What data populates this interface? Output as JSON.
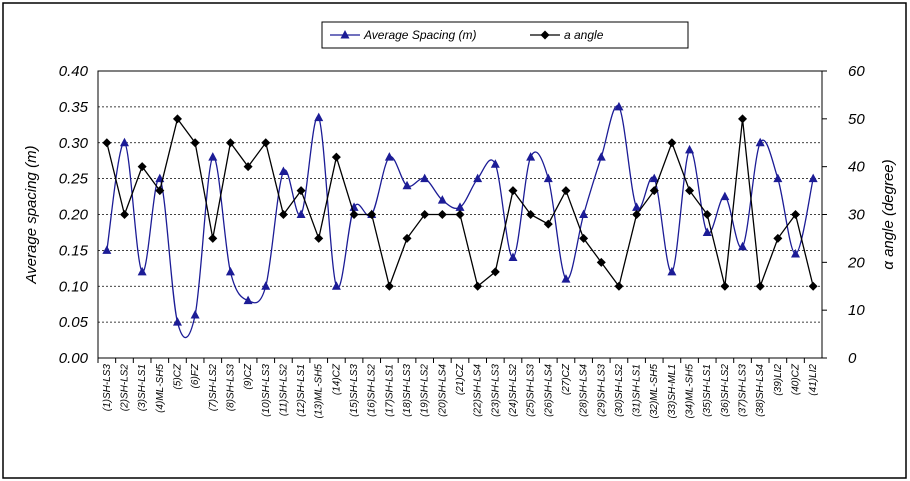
{
  "chart_data": {
    "type": "line",
    "categories": [
      "(1)SH-LS3",
      "(2)SH-LS2",
      "(3)SH-LS1",
      "(4)ML-SH5",
      "(5)CZ",
      "(6)FZ",
      "(7)SH-LS2",
      "(8)SH-LS3",
      "(9)CZ",
      "(10)SH-LS3",
      "(11)SH-LS2",
      "(12)SH-LS1",
      "(13)ML-SH5",
      "(14)CZ",
      "(15)SH-LS3",
      "(16)SH-LS2",
      "(17)SH-LS1",
      "(18)SH-LS3",
      "(19)SH-LS2",
      "(20)SH-LS4",
      "(21)CZ",
      "(22)SH-LS4",
      "(23)SH-LS3",
      "(24)SH-LS2",
      "(25)SH-LS3",
      "(26)SH-LS4",
      "(27)CZ",
      "(28)SH-LS4",
      "(29)SH-LS3",
      "(30)SH-LS2",
      "(31)SH-LS1",
      "(32)ML-SH5",
      "(33)SH-ML1",
      "(34)ML-SH5",
      "(35)SH-LS1",
      "(36)SH-LS2",
      "(37)SH-LS3",
      "(38)SH-LS4",
      "(39)LI2",
      "(40)CZ",
      "(41)LI2"
    ],
    "series": [
      {
        "name": "Average Spacing (m)",
        "color": "#1c1c96",
        "marker": "triangle",
        "smooth": true,
        "values": [
          0.15,
          0.3,
          0.12,
          0.25,
          0.05,
          0.06,
          0.28,
          0.12,
          0.08,
          0.1,
          0.26,
          0.2,
          0.335,
          0.1,
          0.21,
          0.2,
          0.28,
          0.24,
          0.25,
          0.22,
          0.21,
          0.25,
          0.27,
          0.14,
          0.28,
          0.25,
          0.11,
          0.2,
          0.28,
          0.35,
          0.21,
          0.25,
          0.12,
          0.29,
          0.175,
          0.225,
          0.155,
          0.3,
          0.25,
          0.145,
          0.25
        ]
      },
      {
        "name": "a angle",
        "color": "#000000",
        "marker": "diamond",
        "smooth": false,
        "axis": "y2",
        "values": [
          45,
          30,
          40,
          35,
          50,
          45,
          25,
          45,
          40,
          45,
          30,
          35,
          25,
          42,
          30,
          30,
          15,
          25,
          30,
          30,
          30,
          15,
          18,
          35,
          30,
          28,
          35,
          25,
          20,
          15,
          30,
          35,
          45,
          35,
          30,
          15,
          50,
          15,
          25,
          30,
          15
        ]
      }
    ],
    "y_label": "Average spacing (m)",
    "y2_label": "α angle (degree)",
    "ylim": [
      0,
      0.4
    ],
    "yticks": [
      {
        "value": 0,
        "label": "0.00"
      },
      {
        "value": 0.05,
        "label": "0.05"
      },
      {
        "value": 0.1,
        "label": "0.10"
      },
      {
        "value": 0.15,
        "label": "0.15"
      },
      {
        "value": 0.2,
        "label": "0.20"
      },
      {
        "value": 0.25,
        "label": "0.25"
      },
      {
        "value": 0.3,
        "label": "0.30"
      },
      {
        "value": 0.35,
        "label": "0.35"
      },
      {
        "value": 0.4,
        "label": "0.40"
      }
    ],
    "y2lim": [
      0,
      60
    ],
    "y2ticks": [
      0,
      10,
      20,
      30,
      40,
      50,
      60
    ],
    "grid": true,
    "legend": "top"
  }
}
